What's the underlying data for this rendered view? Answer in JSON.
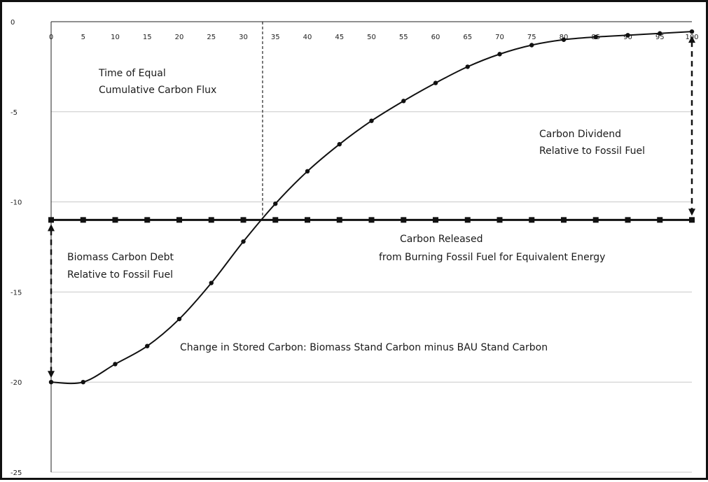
{
  "chart_data": {
    "type": "line",
    "title": "",
    "xlabel": "",
    "ylabel": "",
    "x": [
      0,
      5,
      10,
      15,
      20,
      25,
      30,
      35,
      40,
      45,
      50,
      55,
      60,
      65,
      70,
      75,
      80,
      85,
      90,
      95,
      100
    ],
    "x_tick_labels": [
      "0",
      "5",
      "10",
      "15",
      "20",
      "25",
      "30",
      "35",
      "40",
      "45",
      "50",
      "55",
      "60",
      "65",
      "70",
      "75",
      "80",
      "85",
      "90",
      "95",
      "100"
    ],
    "y_tick_labels": [
      "0",
      "-5",
      "-10",
      "-15",
      "-20",
      "-25"
    ],
    "y_ticks": [
      0,
      -5,
      -10,
      -15,
      -20,
      -25
    ],
    "xlim": [
      0,
      100
    ],
    "ylim": [
      -25,
      0
    ],
    "x_axis_position": "top",
    "grid": "horizontal",
    "series": [
      {
        "marker": "circle",
        "color": "#111111",
        "values": [
          -20,
          -20,
          -19,
          -18,
          -16.5,
          -14.5,
          -12.2,
          -10.1,
          -8.3,
          -6.8,
          -5.5,
          -4.4,
          -3.4,
          -2.5,
          -1.8,
          -1.3,
          -1.0,
          -0.85,
          -0.75,
          -0.65,
          -0.55
        ]
      },
      {
        "marker": "square",
        "color": "#111111",
        "values": [
          -11,
          -11,
          -11,
          -11,
          -11,
          -11,
          -11,
          -11,
          -11,
          -11,
          -11,
          -11,
          -11,
          -11,
          -11,
          -11,
          -11,
          -11,
          -11,
          -11,
          -11
        ]
      }
    ],
    "crossover": {
      "x": 33,
      "y": -11
    },
    "annotations": {
      "equal_flux": [
        "Time of Equal",
        "Cumulative Carbon Flux"
      ],
      "dividend": [
        "Carbon Dividend",
        "Relative to Fossil Fuel"
      ],
      "released": [
        "Carbon Released",
        "from Burning  Fossil Fuel for Equivalent Energy"
      ],
      "debt": [
        "Biomass Carbon Debt",
        "Relative to Fossil Fuel"
      ],
      "stored": [
        "Change in Stored Carbon: Biomass Stand Carbon minus BAU Stand Carbon"
      ]
    },
    "debt_arrow": {
      "x": 0,
      "from": -20,
      "to": -11
    },
    "dividend_arrow": {
      "x": 100,
      "from": -0.55,
      "to": -11
    }
  }
}
